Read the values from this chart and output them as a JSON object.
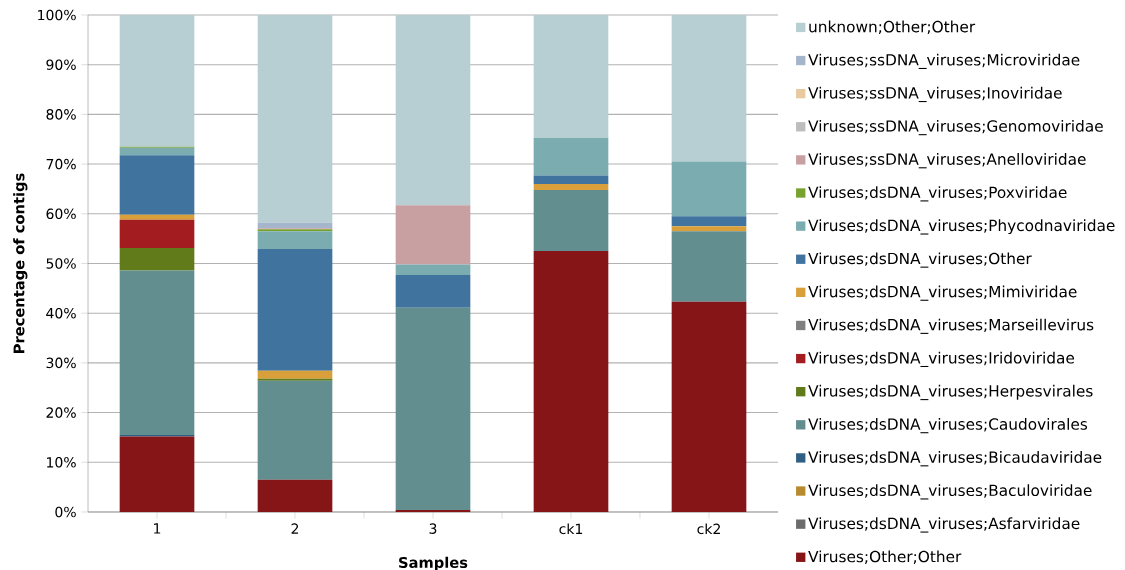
{
  "chart_data": {
    "type": "bar",
    "stacked": true,
    "xlabel": "Samples",
    "ylabel": "Precentage of contigs",
    "categories": [
      "1",
      "2",
      "3",
      "ck1",
      "ck2"
    ],
    "ylim": [
      0,
      100
    ],
    "yticks": [
      {
        "value": 0,
        "label": "0%"
      },
      {
        "value": 10,
        "label": "10%"
      },
      {
        "value": 20,
        "label": "20%"
      },
      {
        "value": 30,
        "label": "30%"
      },
      {
        "value": 40,
        "label": "40%"
      },
      {
        "value": 50,
        "label": "50%"
      },
      {
        "value": 60,
        "label": "60%"
      },
      {
        "value": 70,
        "label": "70%"
      },
      {
        "value": 80,
        "label": "80%"
      },
      {
        "value": 90,
        "label": "90%"
      },
      {
        "value": 100,
        "label": "100%"
      }
    ],
    "grid": "y",
    "legend": "right",
    "series": [
      {
        "name": "Viruses;Other;Other",
        "color": "#861518",
        "values": [
          15.2,
          6.5,
          0.4,
          52.5,
          42.3
        ]
      },
      {
        "name": "Viruses;dsDNA_viruses;Asfarviridae",
        "color": "#6b6b6b",
        "values": [
          0,
          0,
          0,
          0,
          0
        ]
      },
      {
        "name": "Viruses;dsDNA_viruses;Baculoviridae",
        "color": "#b88a30",
        "values": [
          0,
          0,
          0,
          0,
          0
        ]
      },
      {
        "name": "Viruses;dsDNA_viruses;Bicaudaviridae",
        "color": "#2f5f82",
        "values": [
          0.3,
          0,
          0,
          0,
          0
        ]
      },
      {
        "name": "Viruses;dsDNA_viruses;Caudovirales",
        "color": "#628e8f",
        "values": [
          33.1,
          19.9,
          40.7,
          12.3,
          14.2
        ]
      },
      {
        "name": "Viruses;dsDNA_viruses;Herpesvirales",
        "color": "#617a1a",
        "values": [
          4.5,
          0.4,
          0,
          0,
          0
        ]
      },
      {
        "name": "Viruses;dsDNA_viruses;Iridoviridae",
        "color": "#a31c20",
        "values": [
          5.7,
          0,
          0,
          0,
          0
        ]
      },
      {
        "name": "Viruses;dsDNA_viruses;Marseillevirus",
        "color": "#7f7f7f",
        "values": [
          0,
          0,
          0,
          0,
          0
        ]
      },
      {
        "name": "Viruses;dsDNA_viruses;Mimiviridae",
        "color": "#d89f3a",
        "values": [
          1.0,
          1.6,
          0,
          1.2,
          1.0
        ]
      },
      {
        "name": "Viruses;dsDNA_viruses;Other",
        "color": "#40749e",
        "values": [
          12.0,
          24.5,
          6.6,
          1.7,
          2.0
        ]
      },
      {
        "name": "Viruses;dsDNA_viruses;Phycodnaviridae",
        "color": "#7aacb0",
        "values": [
          1.5,
          3.6,
          2.1,
          7.6,
          11.0
        ]
      },
      {
        "name": "Viruses;dsDNA_viruses;Poxviridae",
        "color": "#77a22d",
        "values": [
          0.2,
          0.4,
          0,
          0,
          0
        ]
      },
      {
        "name": "Viruses;ssDNA_viruses;Anelloviridae",
        "color": "#c9a0a2",
        "values": [
          0,
          0.2,
          11.9,
          0,
          0
        ]
      },
      {
        "name": "Viruses;ssDNA_viruses;Genomoviridae",
        "color": "#bdbdbd",
        "values": [
          0,
          0,
          0,
          0,
          0
        ]
      },
      {
        "name": "Viruses;ssDNA_viruses;Inoviridae",
        "color": "#e8c9a0",
        "values": [
          0,
          0,
          0,
          0,
          0
        ]
      },
      {
        "name": "Viruses;ssDNA_viruses;Microviridae",
        "color": "#a5b5cc",
        "values": [
          0,
          1.1,
          0,
          0,
          0
        ]
      },
      {
        "name": "unknown;Other;Other",
        "color": "#b7cfd2",
        "values": [
          26.5,
          41.8,
          38.3,
          24.7,
          29.5
        ]
      }
    ]
  }
}
